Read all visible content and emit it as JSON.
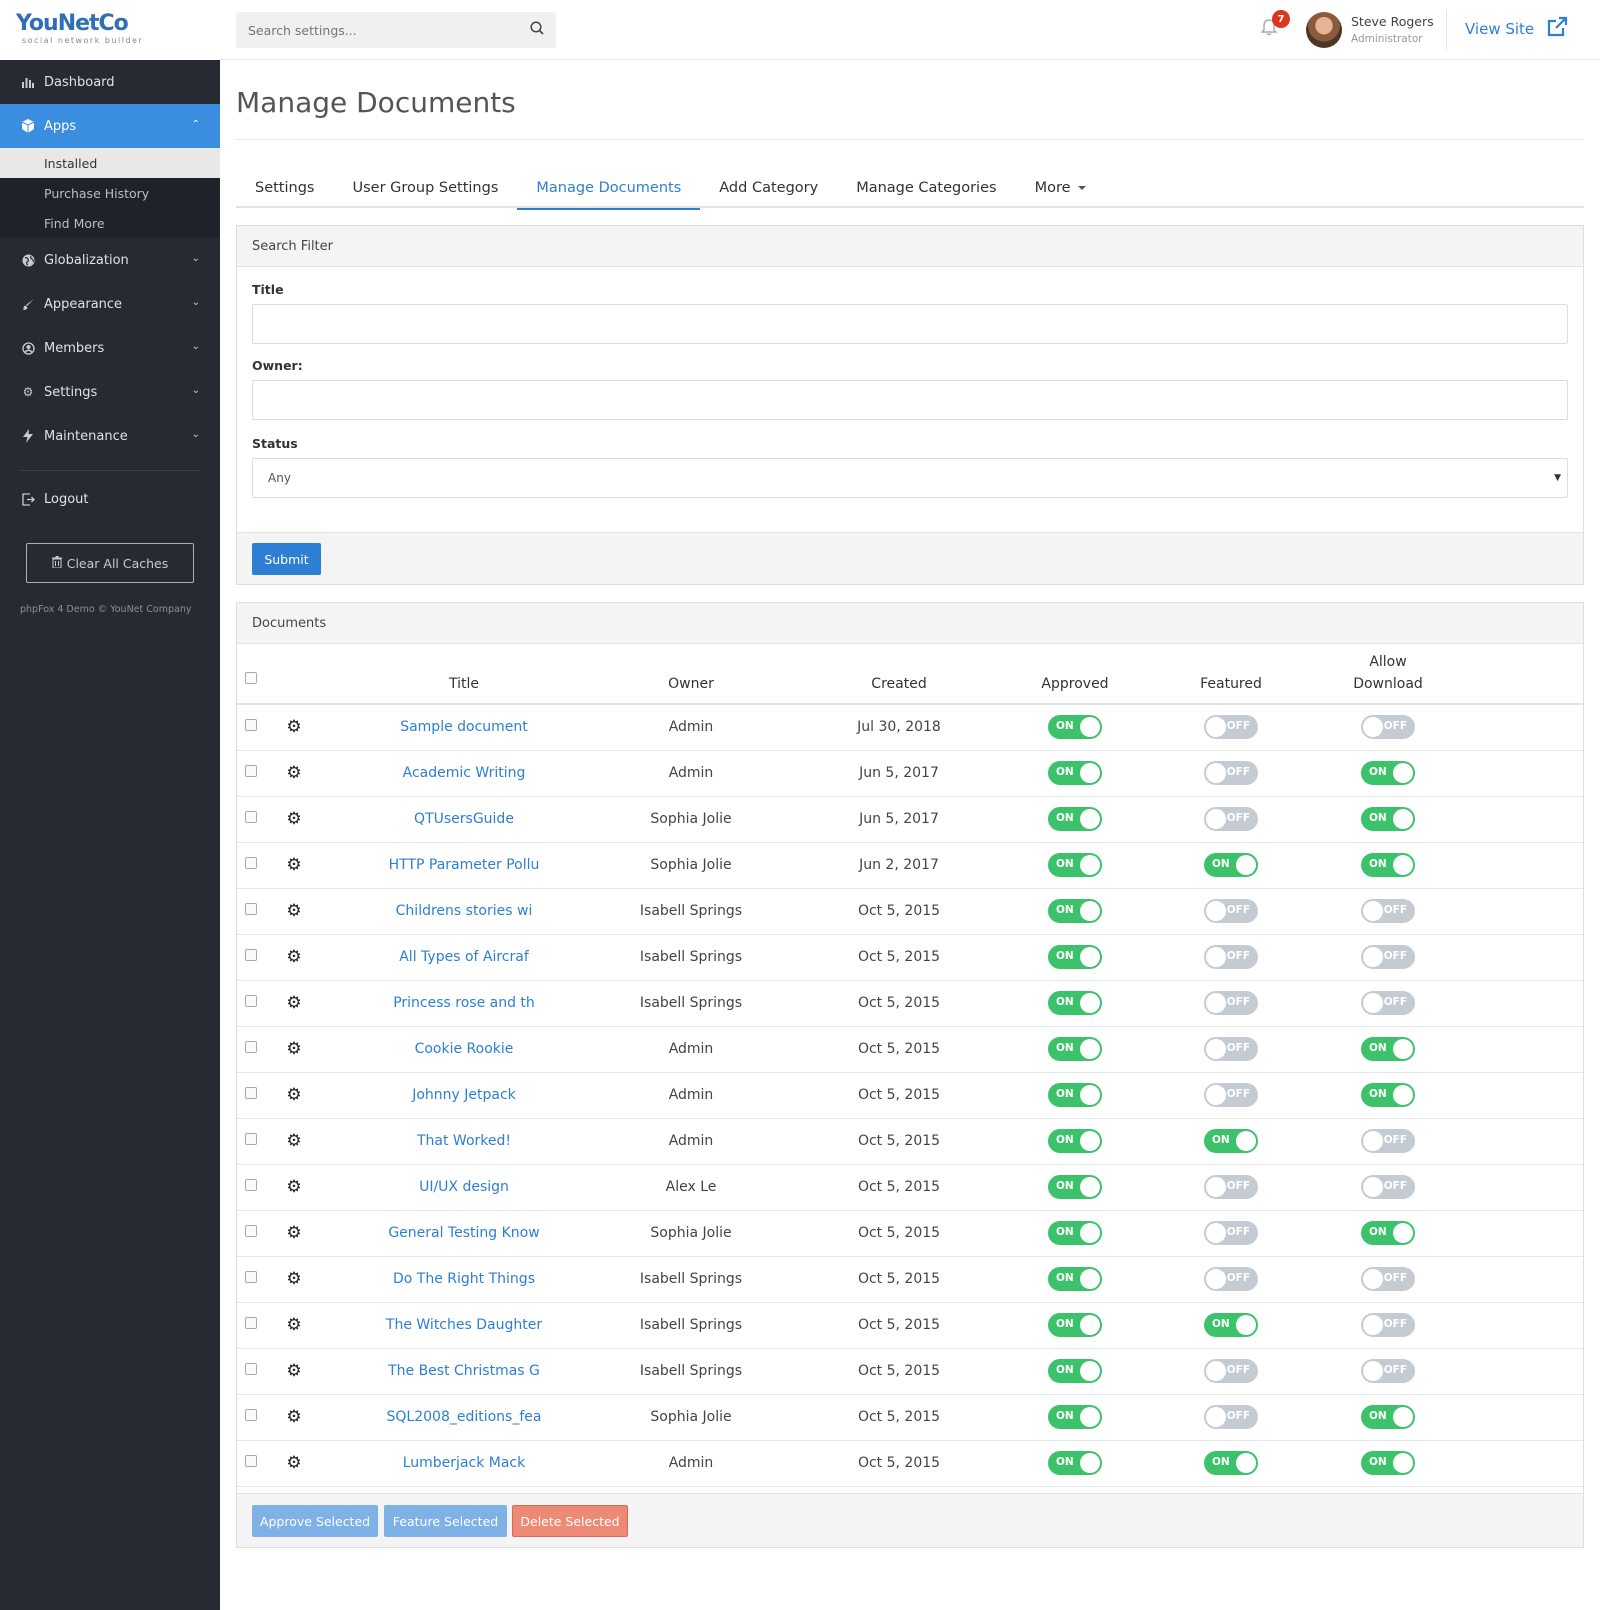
{
  "logo": {
    "main": "YouNetCo",
    "sub": "social network builder"
  },
  "sidebar": {
    "items": [
      {
        "label": "Dashboard"
      },
      {
        "label": "Apps"
      },
      {
        "label": "Globalization"
      },
      {
        "label": "Appearance"
      },
      {
        "label": "Members"
      },
      {
        "label": "Settings"
      },
      {
        "label": "Maintenance"
      },
      {
        "label": "Logout"
      }
    ],
    "apps_sub": [
      {
        "label": "Installed"
      },
      {
        "label": "Purchase History"
      },
      {
        "label": "Find More"
      }
    ],
    "clear_caches": "Clear All Caches",
    "footer_note": "phpFox 4 Demo © YouNet Company"
  },
  "topbar": {
    "search_placeholder": "Search settings...",
    "notification_count": "7",
    "user_name": "Steve Rogers",
    "user_role": "Administrator",
    "view_site": "View Site"
  },
  "page": {
    "title": "Manage Documents"
  },
  "tabs": [
    {
      "label": "Settings"
    },
    {
      "label": "User Group Settings"
    },
    {
      "label": "Manage Documents"
    },
    {
      "label": "Add Category"
    },
    {
      "label": "Manage Categories"
    },
    {
      "label": "More"
    }
  ],
  "filter": {
    "heading": "Search Filter",
    "title_label": "Title",
    "owner_label": "Owner:",
    "status_label": "Status",
    "status_value": "Any",
    "submit": "Submit"
  },
  "documents": {
    "heading": "Documents",
    "columns": {
      "title": "Title",
      "owner": "Owner",
      "created": "Created",
      "approved": "Approved",
      "featured": "Featured",
      "allow_download_1": "Allow",
      "allow_download_2": "Download"
    },
    "toggle_on": "ON",
    "toggle_off": "OFF",
    "rows": [
      {
        "title": "Sample document",
        "owner": "Admin",
        "created": "Jul 30, 2018",
        "approved": true,
        "featured": false,
        "download": false
      },
      {
        "title": "Academic Writing",
        "owner": "Admin",
        "created": "Jun 5, 2017",
        "approved": true,
        "featured": false,
        "download": true
      },
      {
        "title": "QTUsersGuide",
        "owner": "Sophia Jolie",
        "created": "Jun 5, 2017",
        "approved": true,
        "featured": false,
        "download": true
      },
      {
        "title": "HTTP Parameter Pollu",
        "owner": "Sophia Jolie",
        "created": "Jun 2, 2017",
        "approved": true,
        "featured": true,
        "download": true
      },
      {
        "title": "Childrens stories wi",
        "owner": "Isabell Springs",
        "created": "Oct 5, 2015",
        "approved": true,
        "featured": false,
        "download": false
      },
      {
        "title": "All Types of Aircraf",
        "owner": "Isabell Springs",
        "created": "Oct 5, 2015",
        "approved": true,
        "featured": false,
        "download": false
      },
      {
        "title": "Princess rose and th",
        "owner": "Isabell Springs",
        "created": "Oct 5, 2015",
        "approved": true,
        "featured": false,
        "download": false
      },
      {
        "title": "Cookie Rookie",
        "owner": "Admin",
        "created": "Oct 5, 2015",
        "approved": true,
        "featured": false,
        "download": true
      },
      {
        "title": "Johnny Jetpack",
        "owner": "Admin",
        "created": "Oct 5, 2015",
        "approved": true,
        "featured": false,
        "download": true
      },
      {
        "title": "That Worked!",
        "owner": "Admin",
        "created": "Oct 5, 2015",
        "approved": true,
        "featured": true,
        "download": false
      },
      {
        "title": "UI/UX design",
        "owner": "Alex Le",
        "created": "Oct 5, 2015",
        "approved": true,
        "featured": false,
        "download": false
      },
      {
        "title": "General Testing Know",
        "owner": "Sophia Jolie",
        "created": "Oct 5, 2015",
        "approved": true,
        "featured": false,
        "download": true
      },
      {
        "title": "Do The Right Things",
        "owner": "Isabell Springs",
        "created": "Oct 5, 2015",
        "approved": true,
        "featured": false,
        "download": false
      },
      {
        "title": "The Witches Daughter",
        "owner": "Isabell Springs",
        "created": "Oct 5, 2015",
        "approved": true,
        "featured": true,
        "download": false
      },
      {
        "title": "The Best Christmas G",
        "owner": "Isabell Springs",
        "created": "Oct 5, 2015",
        "approved": true,
        "featured": false,
        "download": false
      },
      {
        "title": "SQL2008_editions_fea",
        "owner": "Sophia Jolie",
        "created": "Oct 5, 2015",
        "approved": true,
        "featured": false,
        "download": true
      },
      {
        "title": "Lumberjack Mack",
        "owner": "Admin",
        "created": "Oct 5, 2015",
        "approved": true,
        "featured": true,
        "download": true
      }
    ],
    "actions": {
      "approve": "Approve Selected",
      "feature": "Feature Selected",
      "delete": "Delete Selected"
    }
  },
  "colors": {
    "accent": "#2d7fd3",
    "sidebar_bg": "#252a33",
    "toggle_on": "#3cc26a",
    "toggle_off": "#c5cbd2",
    "danger": "#ec8a76"
  }
}
